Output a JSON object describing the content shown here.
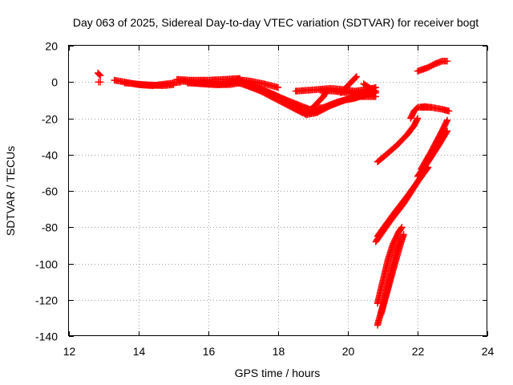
{
  "chart_data": {
    "type": "scatter",
    "title": "Day 063 of 2025, Sidereal Day-to-day VTEC variation (SDTVAR) for receiver bogt",
    "xlabel": "GPS time / hours",
    "ylabel": "SDTVAR / TECUs",
    "xlim": [
      12,
      24
    ],
    "ylim": [
      -140,
      20
    ],
    "xticks": [
      "12",
      "14",
      "16",
      "18",
      "20",
      "22",
      "24"
    ],
    "yticks": [
      "20",
      "0",
      "-20",
      "-40",
      "-60",
      "-80",
      "-100",
      "-120",
      "-140"
    ],
    "grid": true,
    "marker": "plus",
    "color": "#ff0000",
    "tracks": [
      [
        [
          12.83,
          5
        ],
        [
          12.9,
          3.5
        ]
      ],
      [
        [
          12.85,
          0
        ],
        [
          12.9,
          0
        ]
      ],
      [
        [
          13.3,
          1
        ],
        [
          13.6,
          0
        ],
        [
          14.0,
          -1.5
        ],
        [
          14.4,
          -2
        ],
        [
          14.8,
          -1
        ],
        [
          15.2,
          0
        ]
      ],
      [
        [
          13.6,
          -0.5
        ],
        [
          14.2,
          -1.5
        ],
        [
          14.7,
          -2
        ],
        [
          15.0,
          -1.5
        ]
      ],
      [
        [
          15.2,
          0.5
        ],
        [
          15.5,
          0
        ],
        [
          15.9,
          -1
        ],
        [
          16.3,
          -1.5
        ],
        [
          16.7,
          -0.5
        ],
        [
          16.9,
          1
        ]
      ],
      [
        [
          15.4,
          -0.5
        ],
        [
          15.8,
          -1
        ],
        [
          16.2,
          -1.5
        ],
        [
          16.6,
          -1.5
        ],
        [
          16.9,
          -0.5
        ]
      ],
      [
        [
          15.1,
          1.5
        ],
        [
          15.5,
          1
        ],
        [
          16.0,
          1
        ],
        [
          16.5,
          1.5
        ],
        [
          16.9,
          2
        ]
      ],
      [
        [
          16.8,
          1.5
        ],
        [
          17.2,
          0.5
        ],
        [
          17.6,
          -1
        ],
        [
          17.9,
          -2.5
        ],
        [
          18.0,
          -3
        ]
      ],
      [
        [
          16.7,
          0.5
        ],
        [
          17.1,
          -2
        ],
        [
          17.5,
          -5
        ],
        [
          17.9,
          -9
        ],
        [
          18.3,
          -13
        ],
        [
          18.7,
          -17
        ],
        [
          19.0,
          -16.5
        ],
        [
          19.3,
          -14.5
        ],
        [
          19.6,
          -12
        ],
        [
          19.9,
          -10
        ],
        [
          20.2,
          -9
        ],
        [
          20.5,
          -7
        ],
        [
          20.8,
          -5
        ]
      ],
      [
        [
          17.0,
          -1
        ],
        [
          17.5,
          -4
        ],
        [
          18.0,
          -8
        ],
        [
          18.5,
          -12
        ],
        [
          18.9,
          -15
        ],
        [
          19.3,
          -14
        ],
        [
          19.7,
          -11
        ],
        [
          20.1,
          -9
        ],
        [
          20.5,
          -7
        ],
        [
          20.8,
          -6
        ]
      ],
      [
        [
          16.9,
          0
        ],
        [
          17.4,
          -3
        ],
        [
          17.9,
          -7
        ],
        [
          18.4,
          -12
        ],
        [
          18.8,
          -18
        ],
        [
          19.1,
          -17
        ],
        [
          19.5,
          -13
        ],
        [
          19.9,
          -10
        ],
        [
          20.3,
          -8
        ],
        [
          20.8,
          -8
        ]
      ],
      [
        [
          18.5,
          -5
        ],
        [
          18.9,
          -4.5
        ],
        [
          19.2,
          -4
        ],
        [
          19.5,
          -3.5
        ],
        [
          19.8,
          -4
        ],
        [
          20.2,
          -5
        ],
        [
          20.6,
          -4
        ],
        [
          20.8,
          -3
        ]
      ],
      [
        [
          19.2,
          -4.5
        ],
        [
          19.6,
          -5
        ],
        [
          20.0,
          -6
        ],
        [
          20.4,
          -7
        ],
        [
          20.8,
          -5
        ]
      ],
      [
        [
          18.9,
          -16
        ],
        [
          19.1,
          -12
        ],
        [
          19.3,
          -8
        ],
        [
          19.4,
          -4.5
        ]
      ],
      [
        [
          19.8,
          -6
        ],
        [
          19.95,
          -3
        ],
        [
          20.1,
          0
        ],
        [
          20.25,
          3
        ]
      ],
      [
        [
          20.45,
          -1
        ],
        [
          20.6,
          -3
        ],
        [
          20.75,
          -4.5
        ]
      ],
      [
        [
          20.85,
          -44
        ],
        [
          21.1,
          -40
        ],
        [
          21.4,
          -35
        ],
        [
          21.7,
          -29
        ],
        [
          21.9,
          -24
        ],
        [
          22.0,
          -20
        ]
      ],
      [
        [
          21.8,
          -20
        ],
        [
          21.9,
          -16
        ],
        [
          22.0,
          -14
        ],
        [
          22.2,
          -13.5
        ],
        [
          22.4,
          -14
        ]
      ],
      [
        [
          22.1,
          -14
        ],
        [
          22.4,
          -14
        ],
        [
          22.7,
          -15
        ],
        [
          22.9,
          -16
        ]
      ],
      [
        [
          20.8,
          -88
        ],
        [
          21.2,
          -77
        ],
        [
          21.6,
          -67
        ],
        [
          21.9,
          -58
        ],
        [
          22.1,
          -52
        ],
        [
          22.3,
          -47
        ]
      ],
      [
        [
          20.85,
          -85
        ],
        [
          21.3,
          -73
        ],
        [
          21.7,
          -63
        ],
        [
          22.0,
          -55
        ],
        [
          22.3,
          -47
        ]
      ],
      [
        [
          22.0,
          -52
        ],
        [
          22.3,
          -44
        ],
        [
          22.6,
          -35
        ],
        [
          22.85,
          -27
        ]
      ],
      [
        [
          22.1,
          -48
        ],
        [
          22.4,
          -38
        ],
        [
          22.7,
          -27
        ],
        [
          22.85,
          -21
        ]
      ],
      [
        [
          20.85,
          -122
        ],
        [
          21.0,
          -110
        ],
        [
          21.15,
          -98
        ],
        [
          21.3,
          -89
        ],
        [
          21.45,
          -83
        ],
        [
          21.55,
          -80
        ]
      ],
      [
        [
          20.85,
          -134
        ],
        [
          21.05,
          -120
        ],
        [
          21.25,
          -104
        ],
        [
          21.4,
          -92
        ],
        [
          21.55,
          -86
        ]
      ],
      [
        [
          20.95,
          -128
        ],
        [
          21.15,
          -114
        ],
        [
          21.35,
          -100
        ],
        [
          21.5,
          -90
        ],
        [
          21.6,
          -84
        ]
      ],
      [
        [
          22.0,
          6
        ],
        [
          22.3,
          8
        ],
        [
          22.5,
          10
        ],
        [
          22.7,
          11.5
        ],
        [
          22.85,
          11.5
        ]
      ]
    ]
  }
}
